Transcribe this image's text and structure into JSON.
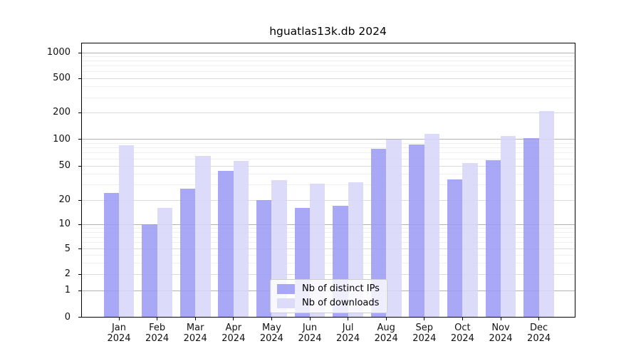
{
  "title": "hguatlas13k.db 2024",
  "chart_data": {
    "type": "bar",
    "title": "hguatlas13k.db 2024",
    "categories": [
      "Jan 2024",
      "Feb 2024",
      "Mar 2024",
      "Apr 2024",
      "May 2024",
      "Jun 2024",
      "Jul 2024",
      "Aug 2024",
      "Sep 2024",
      "Oct 2024",
      "Nov 2024",
      "Dec 2024"
    ],
    "series": [
      {
        "name": "Nb of distinct IPs",
        "color": "#9999f5",
        "values": [
          24,
          10,
          27,
          44,
          20,
          16,
          17,
          78,
          87,
          35,
          58,
          103
        ]
      },
      {
        "name": "Nb of downloads",
        "color": "#d6d6f9",
        "values": [
          85,
          16,
          65,
          57,
          34,
          31,
          32,
          100,
          115,
          54,
          110,
          210
        ]
      }
    ],
    "yscale": "symlog",
    "ylim": [
      0,
      1000
    ],
    "yticks": [
      0,
      1,
      2,
      5,
      10,
      20,
      50,
      100,
      200,
      500,
      1000
    ],
    "xlabel": "",
    "ylabel": "",
    "grid": true,
    "legend_position": "lower center",
    "colors": {
      "grid_major_decade": "#b2b2b2",
      "grid_major": "#dadada",
      "grid_minor": "#efefef",
      "spine": "#000000",
      "text": "#111111"
    }
  }
}
